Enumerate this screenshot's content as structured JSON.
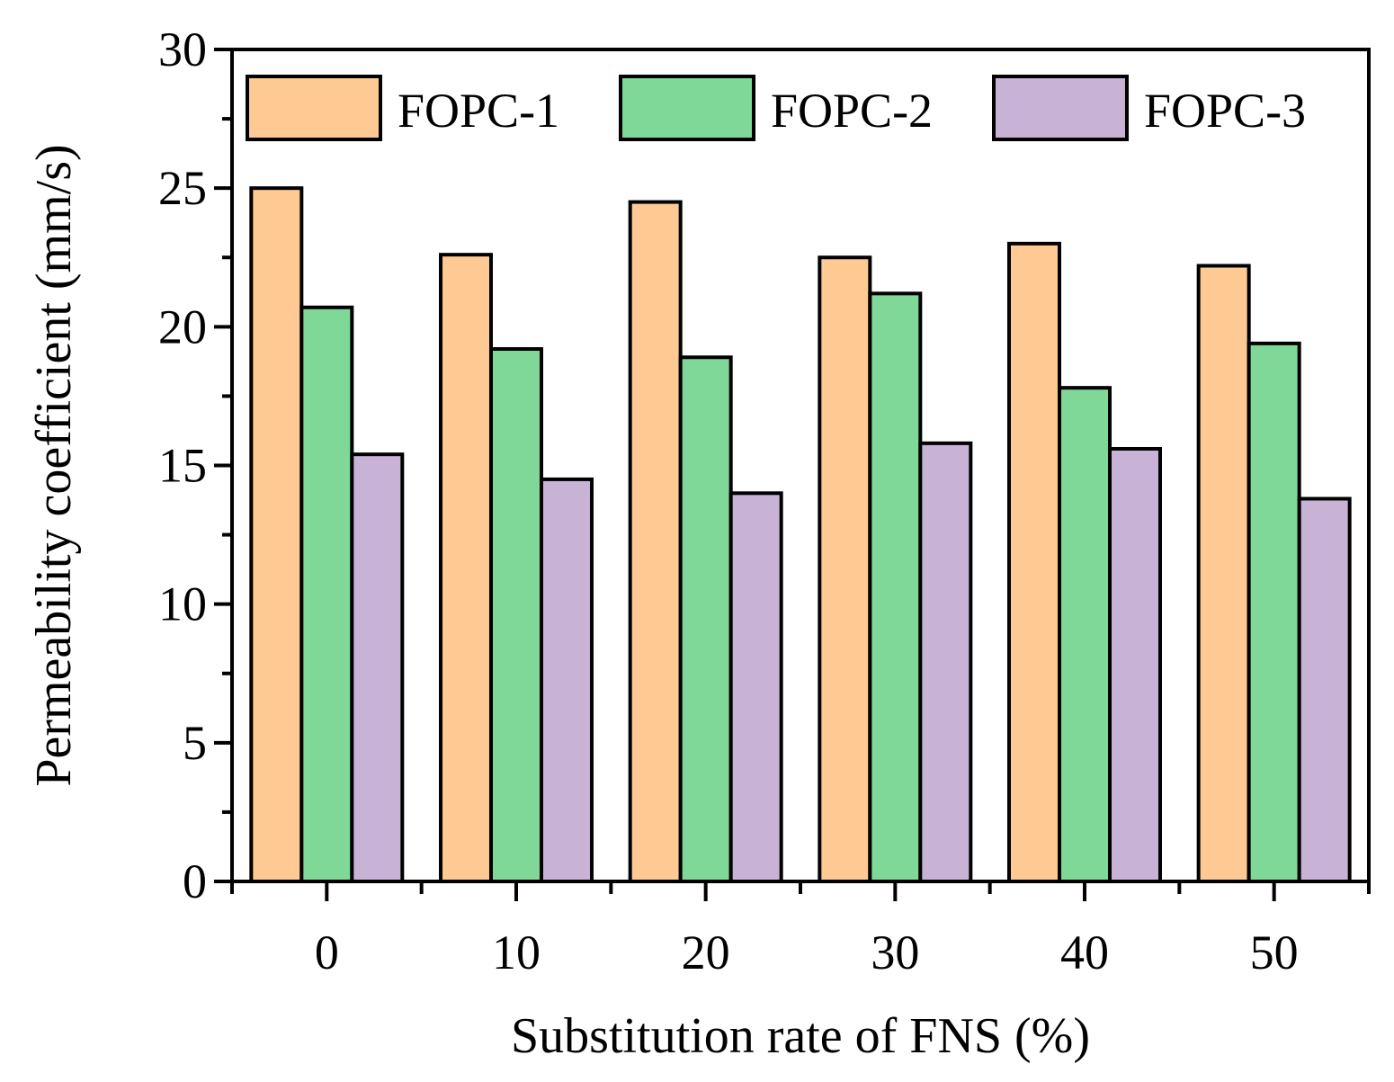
{
  "chart_data": {
    "type": "bar",
    "title": "",
    "xlabel": "Substitution rate of FNS (%)",
    "ylabel": "Permeability coefficient (mm/s)",
    "categories": [
      "0",
      "10",
      "20",
      "30",
      "40",
      "50"
    ],
    "ylim": [
      0,
      30
    ],
    "yticks": [
      "0",
      "5",
      "10",
      "15",
      "20",
      "25",
      "30"
    ],
    "legend_position": "top",
    "grid": false,
    "series": [
      {
        "name": "FOPC-1",
        "color": "#FFC994",
        "values": [
          25.0,
          22.6,
          24.5,
          22.5,
          23.0,
          22.2
        ]
      },
      {
        "name": "FOPC-2",
        "color": "#7FD898",
        "values": [
          20.7,
          19.2,
          18.9,
          21.2,
          17.8,
          19.4
        ]
      },
      {
        "name": "FOPC-3",
        "color": "#C8B3D7",
        "values": [
          15.4,
          14.5,
          14.0,
          15.8,
          15.6,
          13.8
        ]
      }
    ]
  }
}
